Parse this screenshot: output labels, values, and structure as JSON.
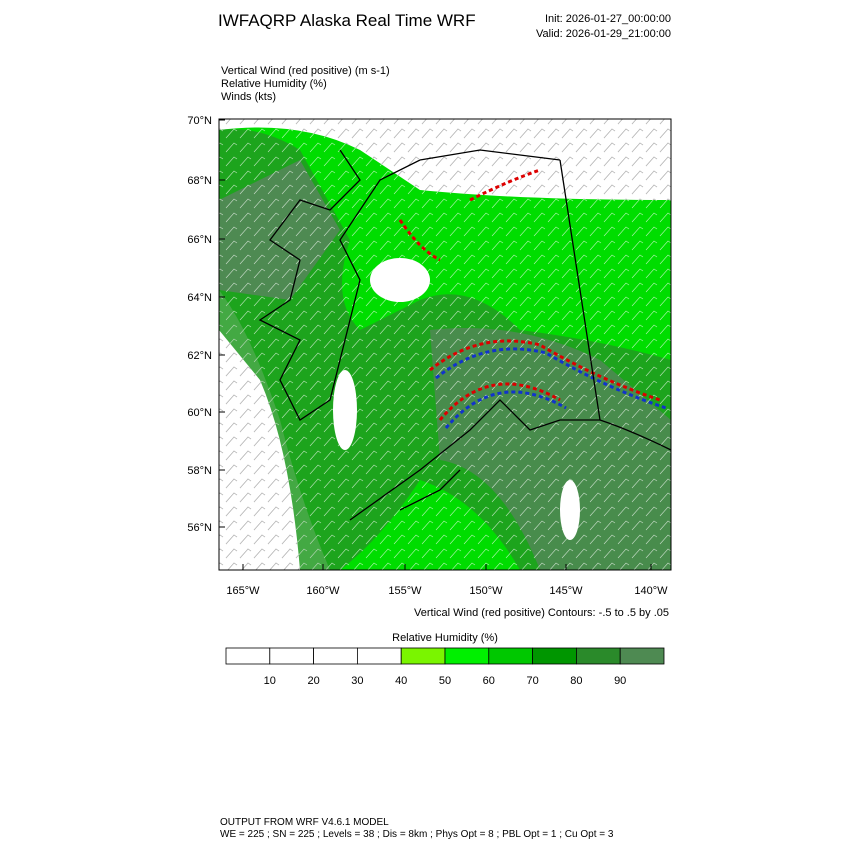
{
  "header": {
    "title": "IWFAQRP Alaska Real Time WRF",
    "init": "Init: 2026-01-27_00:00:00",
    "valid": "Valid: 2026-01-29_21:00:00"
  },
  "fields": [
    "Vertical Wind (red positive)   (m s-1)",
    "Relative Humidity   (%)",
    "Winds   (kts)"
  ],
  "map": {
    "lat_labels": [
      "70°N",
      "68°N",
      "66°N",
      "64°N",
      "62°N",
      "60°N",
      "58°N",
      "56°N"
    ],
    "lon_labels": [
      "165°W",
      "160°W",
      "155°W",
      "150°W",
      "145°W",
      "140°W"
    ],
    "contour_note": "Vertical Wind (red positive) Contours: -.5 to .5 by .05"
  },
  "colorbar": {
    "title": "Relative Humidity  (%)",
    "labels": [
      10,
      20,
      30,
      40,
      50,
      60,
      70,
      80,
      90
    ],
    "colors": [
      "#ffffff",
      "#ffffff",
      "#ffffff",
      "#ffffff",
      "#7af500",
      "#00f000",
      "#00c800",
      "#009600",
      "#2a8a2a",
      "#4e8a52"
    ]
  },
  "footer": [
    "OUTPUT FROM WRF V4.6.1 MODEL",
    "WE = 225 ; SN = 225 ; Levels = 38 ; Dis = 8km ; Phys Opt = 8 ; PBL Opt = 1 ; Cu Opt = 3"
  ]
}
